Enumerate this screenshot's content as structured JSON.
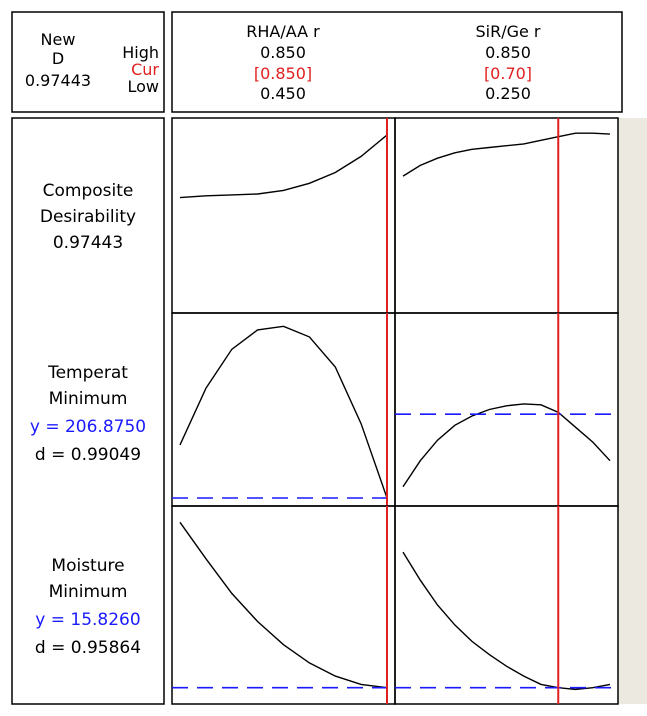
{
  "header": {
    "new_label": "New",
    "d_label": "D",
    "d_value": "0.97443",
    "high_label": "High",
    "cur_label": "Cur",
    "low_label": "Low"
  },
  "factors": [
    {
      "name": "RHA/AA r",
      "high": "0.850",
      "cur": "[0.850]",
      "low": "0.450"
    },
    {
      "name": "SiR/Ge r",
      "high": "0.850",
      "cur": "[0.70]",
      "low": "0.250"
    }
  ],
  "responses": [
    {
      "line1": "Composite",
      "line2": "Desirability",
      "y_text": "",
      "d_text": "0.97443"
    },
    {
      "line1": "Temperat",
      "line2": "Minimum",
      "y_text": "y = 206.8750",
      "d_text": "d = 0.99049"
    },
    {
      "line1": "Moisture",
      "line2": "Minimum",
      "y_text": "y = 15.8260",
      "d_text": "d = 0.95864"
    }
  ],
  "colors": {
    "current_line": "#e02020",
    "target_dash": "#1a1aff",
    "cur_text": "#e02020",
    "y_text": "#1a1aff",
    "curve": "#000000",
    "frame": "#000000",
    "side_strip": "#ece9e0"
  },
  "chart_data": {
    "type": "line",
    "title": "",
    "factors": [
      {
        "name": "RHA/AA r",
        "low": 0.45,
        "high": 0.85,
        "current": 0.85
      },
      {
        "name": "SiR/Ge r",
        "low": 0.25,
        "high": 0.85,
        "current": 0.7
      }
    ],
    "panels": [
      {
        "response": "Composite Desirability",
        "factor": "RHA/AA r",
        "x": [
          0.45,
          0.5,
          0.55,
          0.6,
          0.65,
          0.7,
          0.75,
          0.8,
          0.85
        ],
        "y": [
          0.6,
          0.61,
          0.615,
          0.62,
          0.64,
          0.68,
          0.74,
          0.83,
          0.95
        ],
        "ylim": [
          0,
          1
        ],
        "ref_y": null
      },
      {
        "response": "Composite Desirability",
        "factor": "SiR/Ge r",
        "x": [
          0.25,
          0.3,
          0.35,
          0.4,
          0.45,
          0.5,
          0.55,
          0.6,
          0.65,
          0.7,
          0.75,
          0.8,
          0.85
        ],
        "y": [
          0.72,
          0.78,
          0.82,
          0.85,
          0.87,
          0.88,
          0.89,
          0.9,
          0.92,
          0.94,
          0.96,
          0.96,
          0.955
        ],
        "ylim": [
          0,
          1
        ],
        "ref_y": null
      },
      {
        "response": "Temperat Minimum",
        "factor": "RHA/AA r",
        "x": [
          0.45,
          0.5,
          0.55,
          0.6,
          0.65,
          0.7,
          0.75,
          0.8,
          0.85
        ],
        "y": [
          0.3,
          0.62,
          0.84,
          0.95,
          0.97,
          0.91,
          0.74,
          0.42,
          0.0
        ],
        "ylim": [
          0,
          1
        ],
        "ref_y": 0.0
      },
      {
        "response": "Temperat Minimum",
        "factor": "SiR/Ge r",
        "x": [
          0.25,
          0.3,
          0.35,
          0.4,
          0.45,
          0.5,
          0.55,
          0.6,
          0.65,
          0.7,
          0.75,
          0.8,
          0.85
        ],
        "y": [
          -0.78,
          -0.5,
          -0.28,
          -0.12,
          -0.02,
          0.05,
          0.09,
          0.11,
          0.1,
          0.02,
          -0.14,
          -0.3,
          -0.5
        ],
        "ylim": [
          -0.9,
          1
        ],
        "ref_y": 0.0
      },
      {
        "response": "Moisture Minimum",
        "factor": "RHA/AA r",
        "x": [
          0.45,
          0.5,
          0.55,
          0.6,
          0.65,
          0.7,
          0.75,
          0.8,
          0.85
        ],
        "y": [
          1.0,
          0.78,
          0.57,
          0.4,
          0.26,
          0.15,
          0.07,
          0.02,
          0.0
        ],
        "ylim": [
          -0.05,
          1.05
        ],
        "ref_y": 0.0
      },
      {
        "response": "Moisture Minimum",
        "factor": "SiR/Ge r",
        "x": [
          0.25,
          0.3,
          0.35,
          0.4,
          0.45,
          0.5,
          0.55,
          0.6,
          0.65,
          0.7,
          0.75,
          0.8,
          0.85
        ],
        "y": [
          0.82,
          0.65,
          0.5,
          0.38,
          0.28,
          0.2,
          0.13,
          0.07,
          0.02,
          0.0,
          -0.01,
          0.0,
          0.02
        ],
        "ylim": [
          -0.05,
          1.05
        ],
        "ref_y": 0.0
      }
    ]
  }
}
